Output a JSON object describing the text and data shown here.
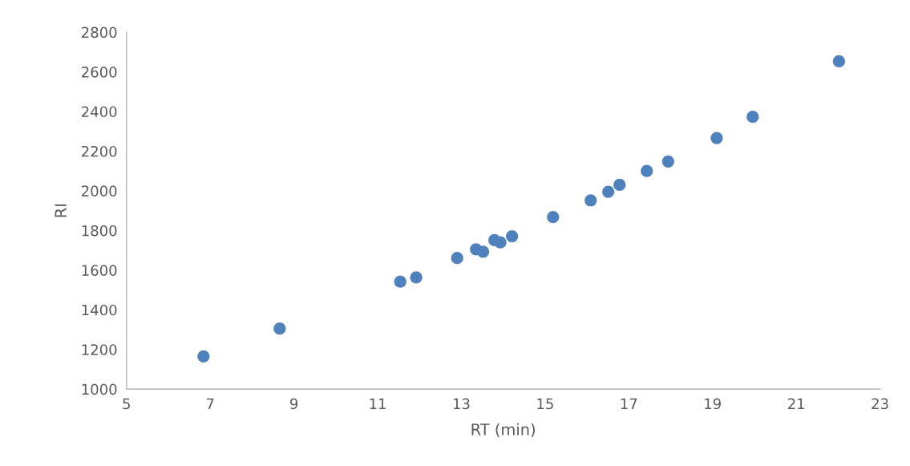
{
  "chart_data": {
    "type": "scatter",
    "xlabel": "RT (min)",
    "ylabel": "RI",
    "x": [
      6.84,
      8.66,
      11.54,
      11.92,
      12.9,
      13.35,
      13.52,
      13.79,
      13.93,
      14.21,
      15.19,
      16.09,
      16.51,
      16.78,
      17.43,
      17.94,
      19.1,
      19.96,
      22.02
    ],
    "series": [
      {
        "color": "#4f81bd",
        "values": [
          1165,
          1305,
          1542,
          1563,
          1661,
          1705,
          1693,
          1751,
          1740,
          1771,
          1868,
          1952,
          1995,
          2030,
          2100,
          2148,
          2266,
          2373,
          2653
        ]
      }
    ],
    "xlim": [
      5,
      23
    ],
    "xticks": [
      5,
      7,
      9,
      11,
      13,
      15,
      17,
      19,
      21,
      23
    ],
    "ylim": [
      1000,
      2800
    ],
    "yticks": [
      1000,
      1200,
      1400,
      1600,
      1800,
      2000,
      2200,
      2400,
      2600,
      2800
    ],
    "marker": "circle",
    "grid": false
  }
}
